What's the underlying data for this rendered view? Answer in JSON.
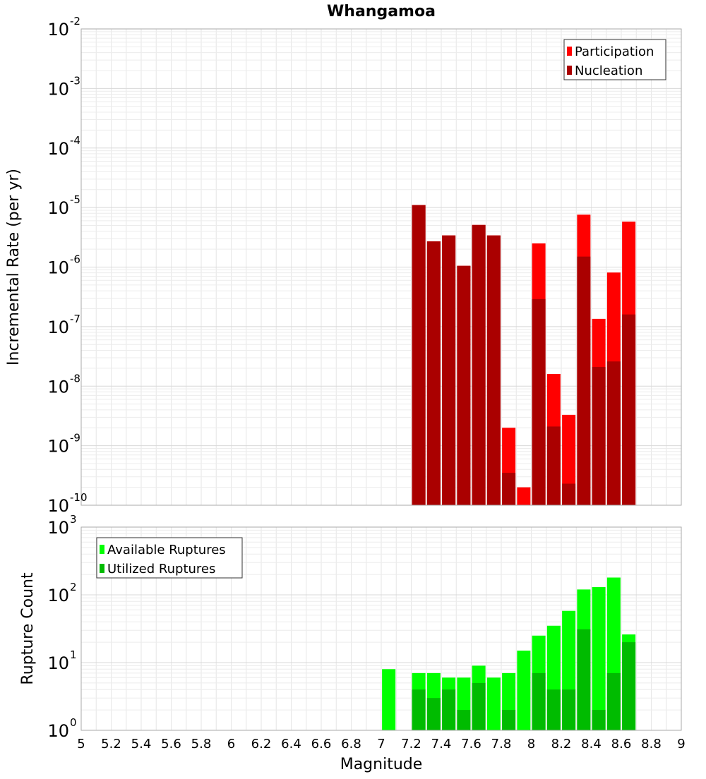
{
  "chart_data": [
    {
      "type": "bar",
      "title": "Whangamoa",
      "ylabel": "Incremental Rate (per yr)",
      "xlabel": "",
      "yscale": "log",
      "ylim": [
        1e-10,
        0.01
      ],
      "xlim": [
        5,
        9
      ],
      "y_tick_exponents": [
        -10,
        -9,
        -8,
        -7,
        -6,
        -5,
        -4,
        -3,
        -2
      ],
      "grid": true,
      "legend_position": "top-right",
      "x": [
        7.25,
        7.35,
        7.45,
        7.55,
        7.65,
        7.75,
        7.85,
        7.95,
        8.05,
        8.15,
        8.25,
        8.35,
        8.45,
        8.55,
        8.65
      ],
      "series": [
        {
          "name": "Participation",
          "color": "#ff0000",
          "values": [
            1.1e-05,
            2.7e-06,
            3.4e-06,
            1.05e-06,
            5.1e-06,
            3.4e-06,
            2e-09,
            2e-10,
            2.5e-06,
            1.6e-08,
            3.3e-09,
            7.6e-06,
            1.35e-07,
            8.1e-07,
            5.8e-06
          ]
        },
        {
          "name": "Nucleation",
          "color": "#aa0000",
          "values": [
            1.1e-05,
            2.7e-06,
            3.4e-06,
            1.05e-06,
            5.1e-06,
            3.4e-06,
            3.5e-10,
            null,
            2.9e-07,
            2.1e-09,
            2.3e-10,
            1.5e-06,
            2.1e-08,
            2.6e-08,
            1.6e-07
          ]
        }
      ]
    },
    {
      "type": "bar",
      "title": "",
      "ylabel": "Rupture Count",
      "xlabel": "Magnitude",
      "yscale": "log",
      "ylim": [
        1,
        1000
      ],
      "xlim": [
        5,
        9
      ],
      "y_tick_exponents": [
        0,
        1,
        2,
        3
      ],
      "x_ticks": [
        "5",
        "5.2",
        "5.4",
        "5.6",
        "5.8",
        "6",
        "6.2",
        "6.4",
        "6.6",
        "6.8",
        "7",
        "7.2",
        "7.4",
        "7.6",
        "7.8",
        "8",
        "8.2",
        "8.4",
        "8.6",
        "8.8",
        "9"
      ],
      "grid": true,
      "legend_position": "top-left",
      "x": [
        7.05,
        7.25,
        7.35,
        7.45,
        7.55,
        7.65,
        7.75,
        7.85,
        7.95,
        8.05,
        8.15,
        8.25,
        8.35,
        8.45,
        8.55,
        8.65
      ],
      "series": [
        {
          "name": "Available Ruptures",
          "color": "#00ff00",
          "values": [
            8,
            7,
            7,
            6,
            6,
            9,
            6,
            7,
            15,
            25,
            35,
            58,
            120,
            130,
            180,
            26
          ]
        },
        {
          "name": "Utilized Ruptures",
          "color": "#00bb00",
          "values": [
            null,
            4,
            3,
            4,
            2,
            5,
            1,
            2,
            1,
            7,
            4,
            4,
            31,
            2,
            7,
            20
          ]
        }
      ]
    }
  ]
}
